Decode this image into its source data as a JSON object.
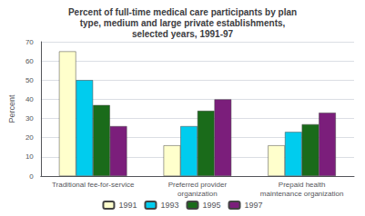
{
  "chart_data": {
    "type": "bar",
    "title": "Percent of full-time medical care participants by plan\ntype, medium and large private establishments,\nselected years, 1991-97",
    "ylabel": "Percent",
    "categories": [
      "Traditional fee-for-service",
      "Preferred provider\norganization",
      "Prepaid health\nmaintenance organization"
    ],
    "series": [
      {
        "name": "1991",
        "color": "#FFFFCC",
        "values": [
          65,
          16,
          16
        ]
      },
      {
        "name": "1993",
        "color": "#00CCEE",
        "values": [
          50,
          26,
          23
        ]
      },
      {
        "name": "1995",
        "color": "#1A6B1A",
        "values": [
          37,
          34,
          27
        ]
      },
      {
        "name": "1997",
        "color": "#7B1E7B",
        "values": [
          26,
          40,
          33
        ]
      }
    ],
    "ylim": [
      0,
      70
    ],
    "yticks": [
      0,
      10,
      20,
      30,
      40,
      50,
      60,
      70
    ],
    "grid": true,
    "legend": "bottom"
  }
}
